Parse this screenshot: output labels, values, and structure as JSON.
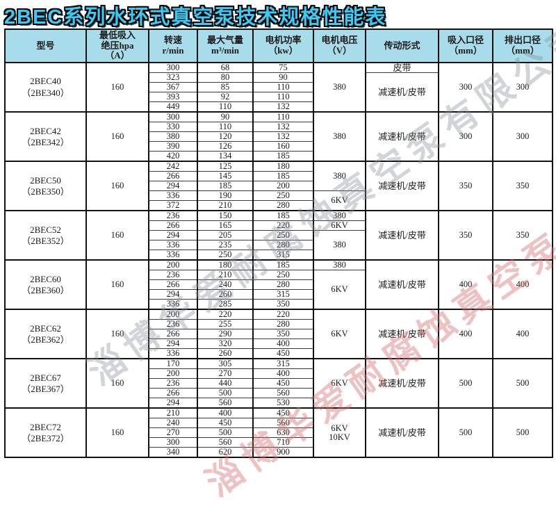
{
  "title": "2BEC系列水环式真空泵技术规格性能表",
  "colors": {
    "header_bg": "#a9dcea",
    "title_fill": "#3ec9f2",
    "border": "#111111",
    "watermark_gray": "rgba(135,145,150,0.38)",
    "watermark_red": "rgba(210,110,110,0.42)"
  },
  "watermarks": {
    "gray": {
      "text": "淄博华爱耐腐蚀真空泵有限公司"
    },
    "red": {
      "text": "淄博华爱耐腐蚀真空泵有限公司"
    }
  },
  "table": {
    "headers": [
      {
        "id": "model",
        "lines": [
          "型号"
        ]
      },
      {
        "id": "pressure",
        "lines": [
          "最低吸入",
          "绝压hpa",
          "（A）"
        ]
      },
      {
        "id": "speed",
        "lines": [
          "转速",
          "r/min"
        ]
      },
      {
        "id": "flow",
        "lines": [
          "最大气量",
          "m³/min"
        ]
      },
      {
        "id": "power",
        "lines": [
          "电机功率",
          "（kw）"
        ]
      },
      {
        "id": "voltage",
        "lines": [
          "电机电压",
          "（V）"
        ]
      },
      {
        "id": "drive",
        "lines": [
          "传动形式"
        ]
      },
      {
        "id": "inlet",
        "lines": [
          "吸入口径",
          "（mm）"
        ]
      },
      {
        "id": "outlet",
        "lines": [
          "排出口径",
          "（mm）"
        ]
      }
    ],
    "blocks": [
      {
        "model_lines": [
          "2BEC40",
          "（2BE340）"
        ],
        "pressure": "160",
        "rows": [
          [
            "300",
            "68",
            "75"
          ],
          [
            "323",
            "80",
            "90"
          ],
          [
            "367",
            "85",
            "110"
          ],
          [
            "393",
            "92",
            "110"
          ],
          [
            "449",
            "110",
            "132"
          ]
        ],
        "voltage": [
          {
            "lines": [
              "380"
            ],
            "span": 5
          }
        ],
        "drive": [
          {
            "lines": [
              "皮带"
            ],
            "span": 1
          },
          {
            "lines": [
              "减速机/皮带"
            ],
            "span": 4
          }
        ],
        "inlet": "300",
        "outlet": "300"
      },
      {
        "model_lines": [
          "2BEC42",
          "（2BE342）"
        ],
        "pressure": "160",
        "rows": [
          [
            "300",
            "90",
            "110"
          ],
          [
            "330",
            "110",
            "132"
          ],
          [
            "380",
            "120",
            "132"
          ],
          [
            "390",
            "126",
            "160"
          ],
          [
            "420",
            "134",
            "185"
          ]
        ],
        "voltage": [
          {
            "lines": [
              "380"
            ],
            "span": 5
          }
        ],
        "drive": [
          {
            "lines": [
              "减速机/皮带"
            ],
            "span": 5
          }
        ],
        "inlet": "300",
        "outlet": "300"
      },
      {
        "model_lines": [
          "2BEC50",
          "（2BE350）"
        ],
        "pressure": "160",
        "rows": [
          [
            "242",
            "125",
            "180"
          ],
          [
            "266",
            "145",
            "185"
          ],
          [
            "294",
            "185",
            "200"
          ],
          [
            "336",
            "190",
            "250"
          ],
          [
            "372",
            "210",
            "280"
          ]
        ],
        "voltage": [
          {
            "lines": [
              "380"
            ],
            "span": 3
          },
          {
            "lines": [
              "6KV"
            ],
            "span": 2
          }
        ],
        "drive": [
          {
            "lines": [
              "减速机/皮带"
            ],
            "span": 5
          }
        ],
        "inlet": "350",
        "outlet": "350"
      },
      {
        "model_lines": [
          "2BEC52",
          "（2BE352）"
        ],
        "pressure": "160",
        "rows": [
          [
            "236",
            "150",
            "185"
          ],
          [
            "266",
            "165",
            "220"
          ],
          [
            "294",
            "205",
            "250"
          ],
          [
            "336",
            "235",
            "280"
          ],
          [
            "336",
            "250",
            "315"
          ]
        ],
        "voltage": [
          {
            "lines": [
              "380"
            ],
            "span": 1
          },
          {
            "lines": [
              "6KV"
            ],
            "span": 1
          },
          {
            "lines": [
              "380"
            ],
            "span": 3
          }
        ],
        "drive": [
          {
            "lines": [
              "减速机/皮带"
            ],
            "span": 5
          }
        ],
        "inlet": "350",
        "outlet": "350"
      },
      {
        "model_lines": [
          "2BEC60",
          "（2BE360）"
        ],
        "pressure": "160",
        "rows": [
          [
            "200",
            "180",
            "185"
          ],
          [
            "236",
            "210",
            "250"
          ],
          [
            "266",
            "240",
            "280"
          ],
          [
            "294",
            "260",
            "315"
          ],
          [
            "336",
            "285",
            "350"
          ]
        ],
        "voltage": [
          {
            "lines": [
              "380"
            ],
            "span": 1
          },
          {
            "lines": [
              "6KV"
            ],
            "span": 4
          }
        ],
        "drive": [
          {
            "lines": [
              "减速机/皮带"
            ],
            "span": 5
          }
        ],
        "inlet": "400",
        "outlet": "400"
      },
      {
        "model_lines": [
          "2BEC62",
          "（2BE362）"
        ],
        "pressure": "160",
        "rows": [
          [
            "200",
            "220",
            "220"
          ],
          [
            "236",
            "255",
            "280"
          ],
          [
            "266",
            "290",
            "350"
          ],
          [
            "294",
            "320",
            "400"
          ],
          [
            "336",
            "260",
            "450"
          ]
        ],
        "voltage": [
          {
            "lines": [
              "6KV"
            ],
            "span": 5
          }
        ],
        "drive": [
          {
            "lines": [
              "减速机/皮带"
            ],
            "span": 5
          }
        ],
        "inlet": "400",
        "outlet": "400"
      },
      {
        "model_lines": [
          "2BEC67",
          "（2BE367）"
        ],
        "pressure": "160",
        "rows": [
          [
            "170",
            "305",
            "315"
          ],
          [
            "200",
            "270",
            "400"
          ],
          [
            "236",
            "440",
            "450"
          ],
          [
            "266",
            "500",
            "560"
          ],
          [
            "294",
            "560",
            "530"
          ]
        ],
        "voltage": [
          {
            "lines": [
              "6KV"
            ],
            "span": 5
          }
        ],
        "drive": [
          {
            "lines": [
              "减速机/皮带"
            ],
            "span": 5
          }
        ],
        "inlet": "500",
        "outlet": "500"
      },
      {
        "model_lines": [
          "2BEC72",
          "（2BE372）"
        ],
        "pressure": "160",
        "rows": [
          [
            "210",
            "400",
            "450"
          ],
          [
            "240",
            "450",
            "560"
          ],
          [
            "270",
            "500",
            "630"
          ],
          [
            "300",
            "560",
            "710"
          ],
          [
            "340",
            "620",
            "900"
          ]
        ],
        "voltage": [
          {
            "lines": [
              "6KV",
              "10KV"
            ],
            "span": 5
          }
        ],
        "drive": [
          {
            "lines": [
              "减速机/皮带"
            ],
            "span": 5
          }
        ],
        "inlet": "500",
        "outlet": "500"
      }
    ]
  }
}
